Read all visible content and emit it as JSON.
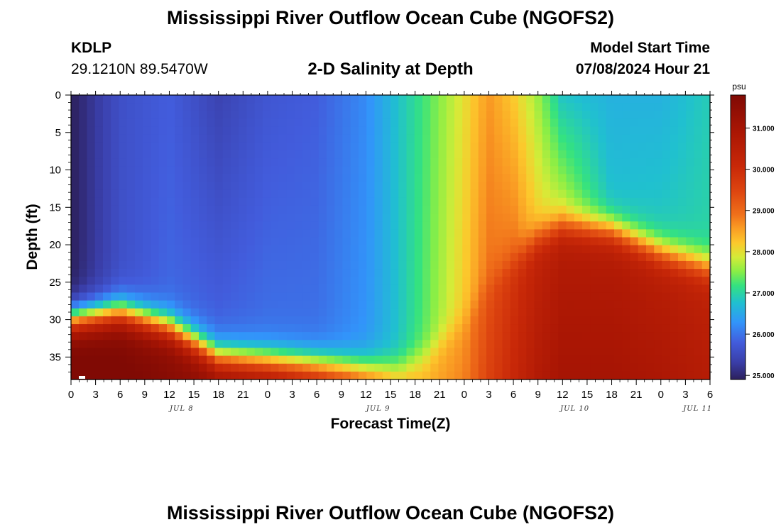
{
  "header": {
    "title": "Mississippi River Outflow Ocean Cube (NGOFS2)",
    "station_code": "KDLP",
    "station_coords": "29.1210N  89.5470W",
    "subtitle": "2-D Salinity at Depth",
    "model_start_label": "Model Start Time",
    "model_start_value": "07/08/2024 Hour 21"
  },
  "footer": {
    "title": "Mississippi River Outflow Ocean Cube (NGOFS2)"
  },
  "chart_data": {
    "type": "heatmap",
    "title": "2-D Salinity at Depth",
    "xlabel": "Forecast Time(Z)",
    "ylabel": "Depth (ft)",
    "x_tick_labels": [
      "0",
      "3",
      "6",
      "9",
      "12",
      "15",
      "18",
      "21",
      "0",
      "3",
      "6",
      "9",
      "12",
      "15",
      "18",
      "21",
      "0",
      "3",
      "6",
      "9",
      "12",
      "15",
      "18",
      "21",
      "0",
      "3",
      "6"
    ],
    "x_date_labels": [
      {
        "label": "JUL 8",
        "tick_index": 4.5
      },
      {
        "label": "JUL 9",
        "tick_index": 12.5
      },
      {
        "label": "JUL 10",
        "tick_index": 20.5
      },
      {
        "label": "JUL 11",
        "tick_index": 25.5
      }
    ],
    "xlim_hours": [
      0,
      78
    ],
    "y_ticks": [
      0,
      5,
      10,
      15,
      20,
      25,
      30,
      35
    ],
    "ylim": [
      0,
      38
    ],
    "y_inverted": true,
    "colorbar": {
      "unit": "psu",
      "min": 24.9,
      "max": 31.8,
      "ticks": [
        "25.000",
        "26.000",
        "27.000",
        "28.000",
        "29.000",
        "30.000",
        "31.000"
      ]
    },
    "field_description": "Salinity (psu) by forecast hour (0-78) and depth (0-38 ft)",
    "profiles": [
      {
        "hour": 0,
        "surface": 24.9,
        "deep": 24.9,
        "halocline_depth": 30,
        "bottom": 31.8
      },
      {
        "hour": 6,
        "surface": 25.6,
        "deep": 25.6,
        "halocline_depth": 29,
        "bottom": 31.7
      },
      {
        "hour": 12,
        "surface": 25.8,
        "deep": 25.9,
        "halocline_depth": 31,
        "bottom": 31.5
      },
      {
        "hour": 18,
        "surface": 25.4,
        "deep": 25.9,
        "halocline_depth": 35,
        "bottom": 31.3
      },
      {
        "hour": 24,
        "surface": 25.7,
        "deep": 26.0,
        "halocline_depth": 35.5,
        "bottom": 31.0
      },
      {
        "hour": 30,
        "surface": 25.8,
        "deep": 26.0,
        "halocline_depth": 36,
        "bottom": 30.5
      },
      {
        "hour": 36,
        "surface": 26.2,
        "deep": 26.3,
        "halocline_depth": 36.5,
        "bottom": 29.5
      },
      {
        "hour": 40,
        "surface": 26.8,
        "deep": 26.8,
        "halocline_depth": 36.5,
        "bottom": 28.5
      },
      {
        "hour": 43,
        "surface": 27.2,
        "deep": 27.3,
        "halocline_depth": 35,
        "bottom": 28.3
      },
      {
        "hour": 48,
        "surface": 28.0,
        "deep": 28.2,
        "halocline_depth": 30,
        "bottom": 28.6
      },
      {
        "hour": 51,
        "surface": 28.6,
        "deep": 28.9,
        "halocline_depth": 25,
        "bottom": 29.3
      },
      {
        "hour": 54,
        "surface": 28.2,
        "deep": 28.9,
        "halocline_depth": 22,
        "bottom": 29.8
      },
      {
        "hour": 57,
        "surface": 27.6,
        "deep": 28.2,
        "halocline_depth": 19,
        "bottom": 30.3
      },
      {
        "hour": 60,
        "surface": 26.8,
        "deep": 27.9,
        "halocline_depth": 17.5,
        "bottom": 30.6
      },
      {
        "hour": 66,
        "surface": 26.6,
        "deep": 26.8,
        "halocline_depth": 18,
        "bottom": 30.6
      },
      {
        "hour": 72,
        "surface": 26.6,
        "deep": 26.9,
        "halocline_depth": 21,
        "bottom": 30.5
      },
      {
        "hour": 78,
        "surface": 26.9,
        "deep": 27.0,
        "halocline_depth": 23,
        "bottom": 30.3
      }
    ]
  }
}
